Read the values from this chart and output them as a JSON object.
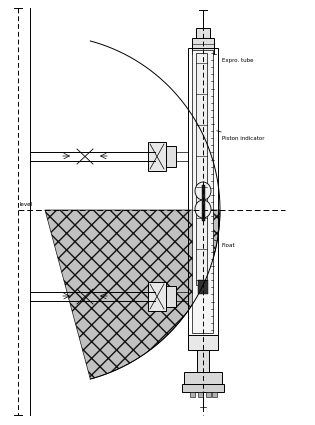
{
  "bg_color": "#ffffff",
  "line_color": "#000000",
  "label_expro_tube": "Expro. tube",
  "label_piston_indicator": "Piston indicator",
  "label_float": "Float",
  "label_level": "level"
}
